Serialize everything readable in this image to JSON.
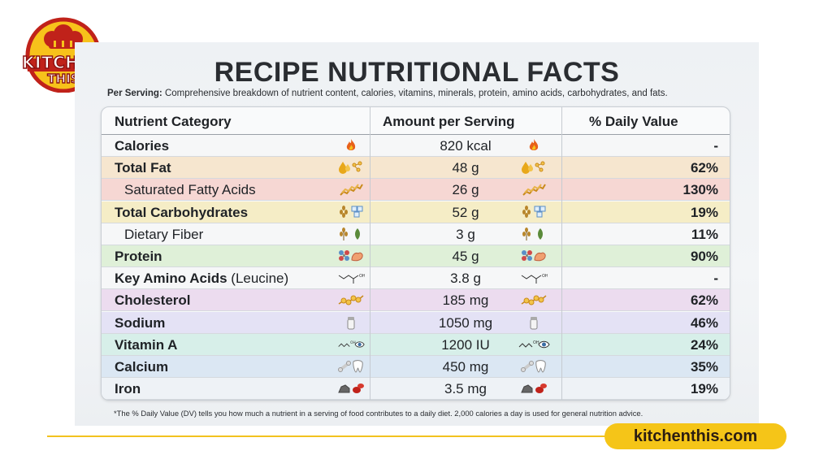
{
  "logo": {
    "line1": "KITCHEN",
    "line2": "THIS"
  },
  "title": "RECIPE NUTRITIONAL FACTS",
  "subtitle": {
    "label": "Per Serving:",
    "text": " Comprehensive breakdown of nutrient content, calories, vitamins, minerals, protein, amino acids, carbohydrates, and fats."
  },
  "table": {
    "headers": {
      "category": "Nutrient Category",
      "amount": "Amount per Serving",
      "dv": "% Daily Value"
    },
    "rows": [
      {
        "name": "Calories",
        "amount": "820 kcal",
        "dv": "-",
        "bold": true,
        "indent": false,
        "color": "#f6f7f8",
        "icon": "flame-icon"
      },
      {
        "name": "Total Fat",
        "amount": "48 g",
        "dv": "62%",
        "bold": true,
        "indent": false,
        "color": "#f6e6cf",
        "icon": "fat-drops-icon"
      },
      {
        "name": "Saturated Fatty Acids",
        "amount": "26 g",
        "dv": "130%",
        "bold": false,
        "indent": true,
        "color": "#f6d7d3",
        "icon": "fatty-acid-chain-icon"
      },
      {
        "name": "Total Carbohydrates",
        "amount": "52 g",
        "dv": "19%",
        "bold": true,
        "indent": false,
        "color": "#f5edc6",
        "icon": "grain-sugar-icon"
      },
      {
        "name": "Dietary Fiber",
        "amount": "3 g",
        "dv": "11%",
        "bold": false,
        "indent": true,
        "color": "#f6f7f8",
        "icon": "wheat-leaf-icon"
      },
      {
        "name": "Protein",
        "amount": "45 g",
        "dv": "90%",
        "bold": true,
        "indent": false,
        "color": "#dff0d8",
        "icon": "molecule-muscle-icon"
      },
      {
        "name": "Key Amino Acids",
        "name_suffix": " (Leucine)",
        "amount": "3.8 g",
        "dv": "-",
        "bold": true,
        "indent": false,
        "color": "#f6f7f8",
        "icon": "amino-acid-structure-icon"
      },
      {
        "name": "Cholesterol",
        "amount": "185 mg",
        "dv": "62%",
        "bold": true,
        "indent": false,
        "color": "#ecdcef",
        "icon": "cholesterol-molecule-icon"
      },
      {
        "name": "Sodium",
        "amount": "1050 mg",
        "dv": "46%",
        "bold": true,
        "indent": false,
        "color": "#e4e2f5",
        "icon": "salt-shaker-icon"
      },
      {
        "name": "Vitamin A",
        "amount": "1200 IU",
        "dv": "24%",
        "bold": true,
        "indent": false,
        "color": "#d7efe9",
        "icon": "retinol-eye-icon"
      },
      {
        "name": "Calcium",
        "amount": "450 mg",
        "dv": "35%",
        "bold": true,
        "indent": false,
        "color": "#dbe7f3",
        "icon": "bone-tooth-icon"
      },
      {
        "name": "Iron",
        "amount": "3.5 mg",
        "dv": "19%",
        "bold": true,
        "indent": false,
        "color": "#eef2f6",
        "icon": "iron-ore-blood-icon"
      }
    ]
  },
  "footnote": "*The % Daily Value (DV) tells you how much a nutrient in a serving of food contributes to a daily diet. 2,000 calories a day is used for general nutrition advice.",
  "website": "kitchenthis.com"
}
